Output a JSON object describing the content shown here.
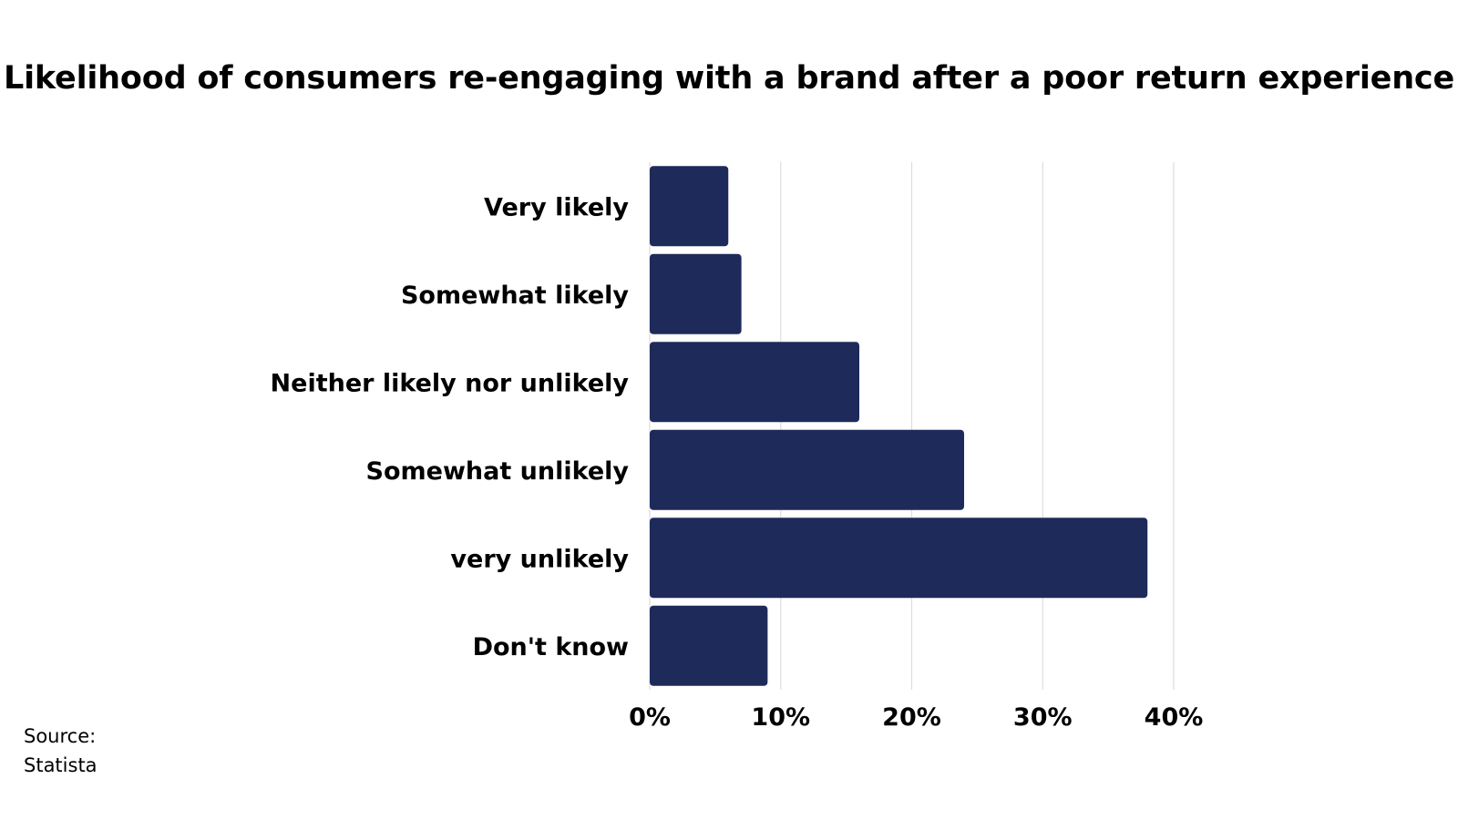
{
  "chart_data": {
    "type": "bar",
    "orientation": "horizontal",
    "title": "Likelihood of consumers re-engaging with a brand after a poor return experience",
    "categories": [
      "Very likely",
      "Somewhat likely",
      "Neither likely nor unlikely",
      "Somewhat unlikely",
      "very unlikely",
      "Don't know"
    ],
    "values": [
      6,
      7,
      16,
      24,
      38,
      9
    ],
    "unit": "%",
    "xlim": [
      0,
      40
    ],
    "xticks": [
      0,
      10,
      20,
      30,
      40
    ],
    "xtick_labels": [
      "0%",
      "10%",
      "20%",
      "30%",
      "40%"
    ],
    "grid": "vertical",
    "bar_color": "#1e2a5a",
    "grid_color": "#dddddd"
  },
  "source": {
    "label": "Source:",
    "name": "Statista"
  }
}
